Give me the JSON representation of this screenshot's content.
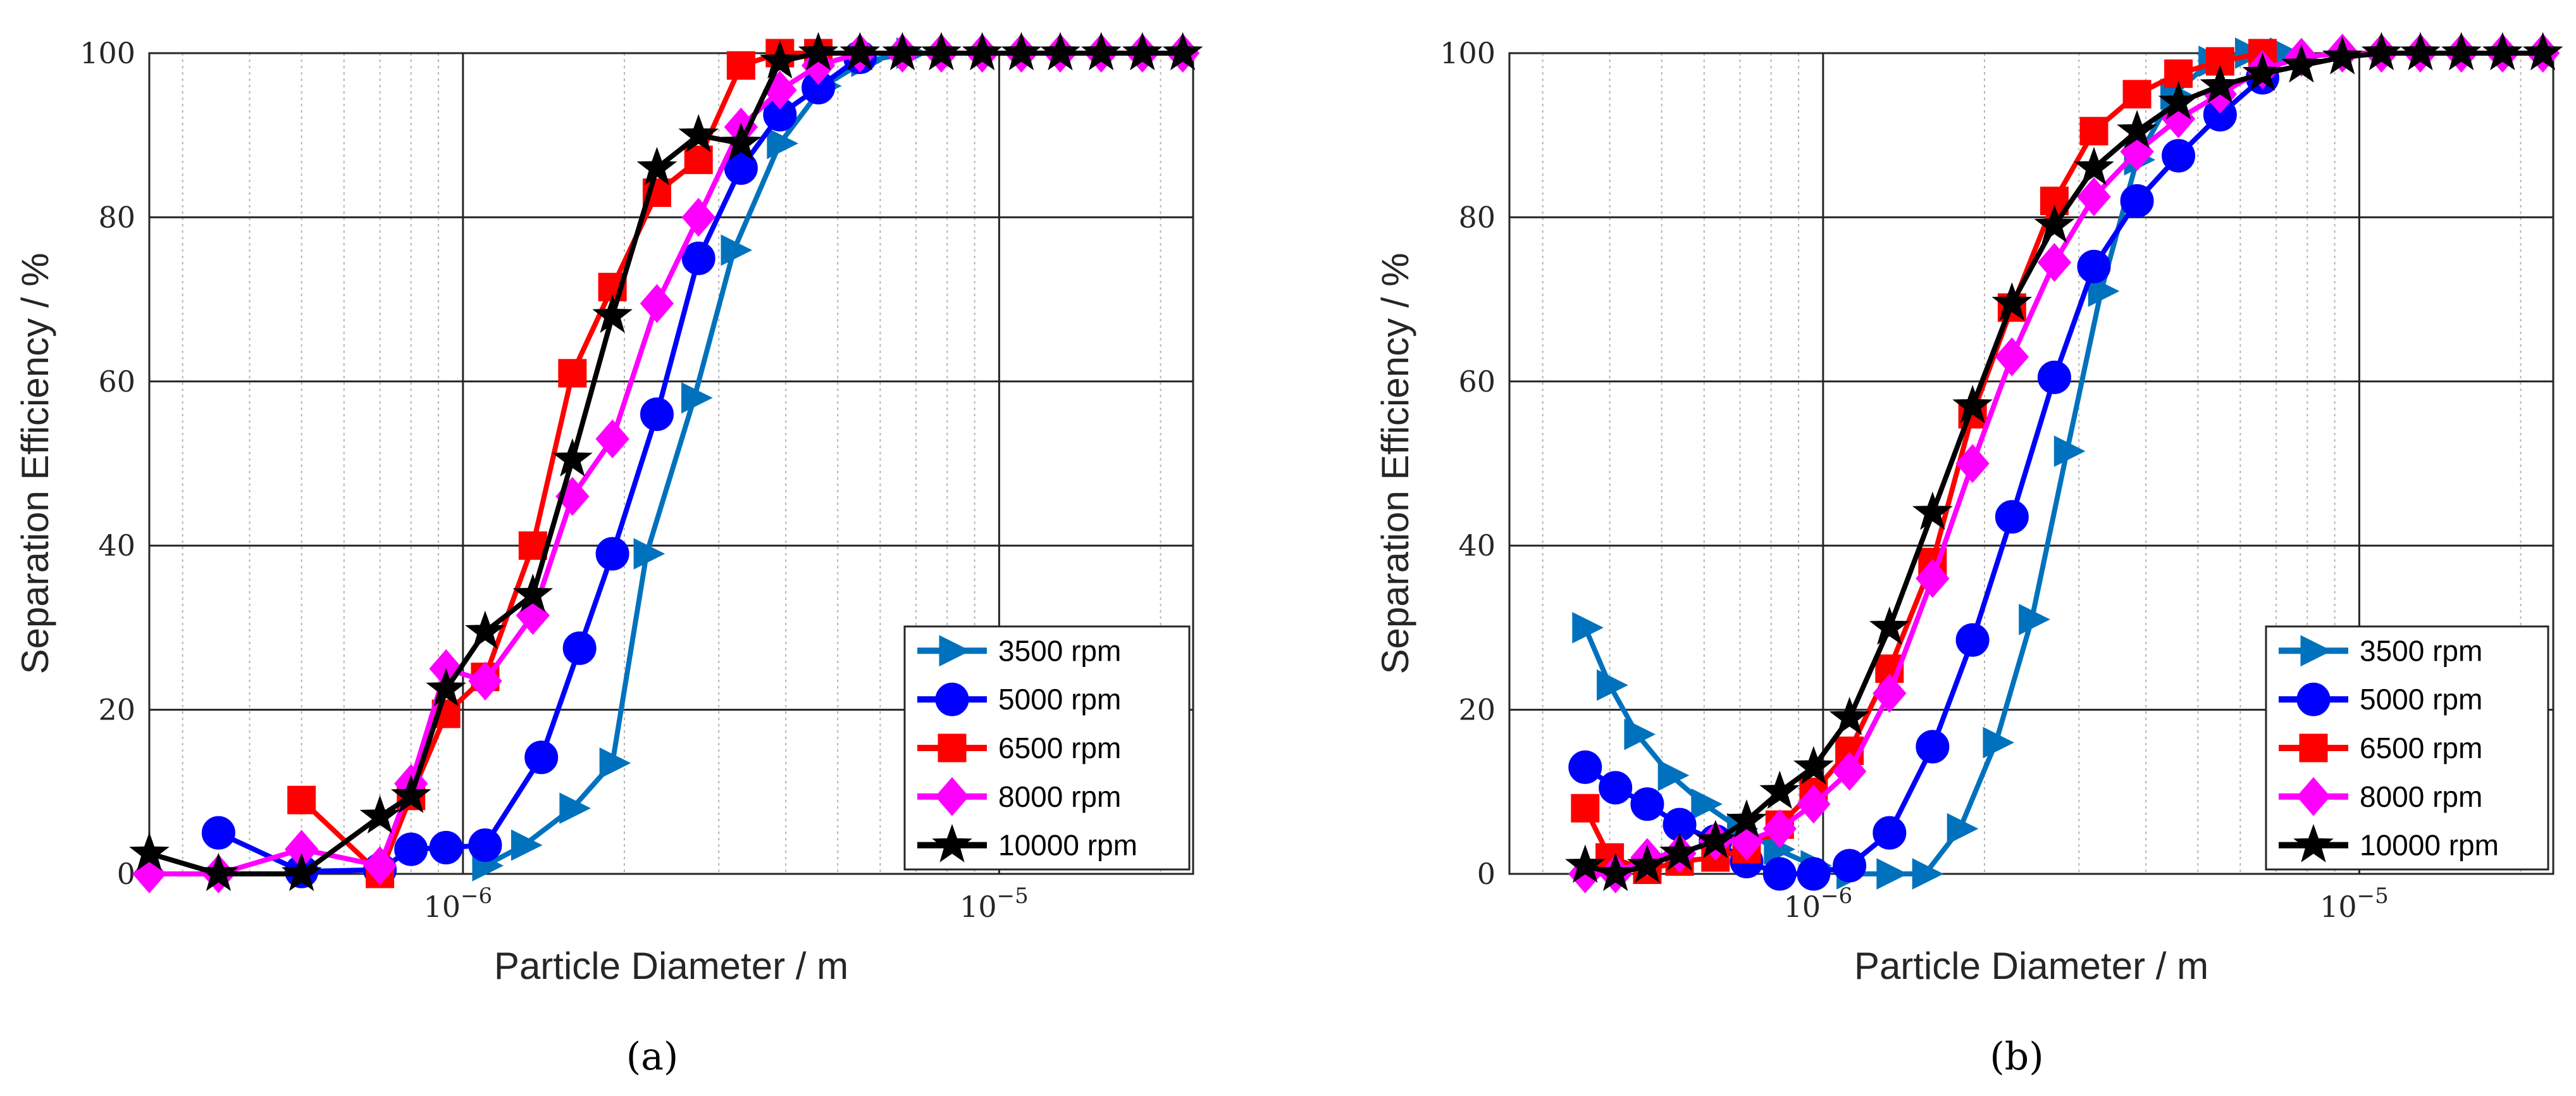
{
  "figure": {
    "captions": [
      "(a)",
      "(b)"
    ]
  },
  "chart_data": [
    {
      "type": "line",
      "panel": "a",
      "xlabel": "Particle Diameter / m",
      "ylabel": "Separation Efficiency / %",
      "xscale": "log",
      "xlim": [
        2.6e-07,
        2.3e-05
      ],
      "ylim": [
        0,
        100
      ],
      "xticks": [
        {
          "value": 1e-06,
          "base": "10",
          "exp": "−6"
        },
        {
          "value": 1e-05,
          "base": "10",
          "exp": "−5"
        }
      ],
      "yticks": [
        "0",
        "20",
        "40",
        "60",
        "80",
        "100"
      ],
      "grid": true,
      "legend_position": "bottom-right",
      "series": [
        {
          "name": "3500 rpm",
          "color": "#0072BD",
          "marker": "triangle-right",
          "x": [
            1.1e-06,
            1.3e-06,
            1.6e-06,
            1.9e-06,
            2.2e-06,
            2.7e-06,
            3.2e-06,
            3.9e-06,
            4.7e-06,
            5.6e-06,
            6.8e-06
          ],
          "y": [
            1,
            3.5,
            8,
            13.5,
            39,
            58,
            76,
            89,
            96,
            99,
            100
          ]
        },
        {
          "name": "5000 rpm",
          "color": "#0000FF",
          "marker": "circle",
          "x": [
            3.5e-07,
            5e-07,
            7e-07,
            8e-07,
            9.3e-07,
            1.1e-06,
            1.4e-06,
            1.65e-06,
            1.9e-06,
            2.3e-06,
            2.75e-06,
            3.3e-06,
            3.9e-06,
            4.6e-06,
            5.5e-06
          ],
          "y": [
            5,
            0.3,
            0.5,
            3,
            3.2,
            3.5,
            14.2,
            27.5,
            39,
            56,
            75,
            86,
            92.5,
            95.8,
            99.5
          ]
        },
        {
          "name": "6500 rpm",
          "color": "#FF0000",
          "marker": "square",
          "x": [
            5e-07,
            7e-07,
            8e-07,
            9.3e-07,
            1.1e-06,
            1.35e-06,
            1.6e-06,
            1.9e-06,
            2.3e-06,
            2.75e-06,
            3.3e-06,
            3.9e-06,
            4.6e-06
          ],
          "y": [
            9,
            0,
            9.5,
            19.5,
            24,
            40,
            61,
            71.5,
            83,
            87,
            98.5,
            100,
            100
          ]
        },
        {
          "name": "8000 rpm",
          "color": "#FF00FF",
          "marker": "diamond",
          "x": [
            2.6e-07,
            3.5e-07,
            5e-07,
            7e-07,
            8e-07,
            9.3e-07,
            1.1e-06,
            1.35e-06,
            1.6e-06,
            1.9e-06,
            2.3e-06,
            2.75e-06,
            3.3e-06,
            3.9e-06,
            4.6e-06,
            5.5e-06,
            6.6e-06,
            7.8e-06,
            9.3e-06,
            1.1e-05,
            1.3e-05,
            1.55e-05,
            1.85e-05,
            2.2e-05
          ],
          "y": [
            0,
            0,
            3,
            1,
            11,
            25,
            23.5,
            31.5,
            46,
            53,
            69.5,
            80,
            91,
            95.5,
            98.5,
            100,
            100,
            100,
            100,
            100,
            100,
            100,
            100,
            100
          ]
        },
        {
          "name": "10000 rpm",
          "color": "#000000",
          "marker": "pentagram",
          "x": [
            2.6e-07,
            3.5e-07,
            5e-07,
            7e-07,
            8e-07,
            9.3e-07,
            1.1e-06,
            1.35e-06,
            1.6e-06,
            1.9e-06,
            2.3e-06,
            2.75e-06,
            3.3e-06,
            3.9e-06,
            4.6e-06,
            5.5e-06,
            6.6e-06,
            7.8e-06,
            9.3e-06,
            1.1e-05,
            1.3e-05,
            1.55e-05,
            1.85e-05,
            2.2e-05
          ],
          "y": [
            2.5,
            0,
            0,
            7,
            9.5,
            22.5,
            29.5,
            34,
            50.5,
            68,
            86,
            90,
            89,
            99,
            100,
            100,
            100,
            100,
            100,
            100,
            100,
            100,
            100,
            100
          ]
        }
      ]
    },
    {
      "type": "line",
      "panel": "b",
      "xlabel": "Particle Diameter / m",
      "ylabel": "Separation Efficiency / %",
      "xscale": "log",
      "xlim": [
        2.6e-07,
        2.3e-05
      ],
      "ylim": [
        0,
        100
      ],
      "xticks": [
        {
          "value": 1e-06,
          "base": "10",
          "exp": "−6"
        },
        {
          "value": 1e-05,
          "base": "10",
          "exp": "−5"
        }
      ],
      "yticks": [
        "0",
        "20",
        "40",
        "60",
        "80",
        "100"
      ],
      "grid": true,
      "legend_position": "bottom-right",
      "series": [
        {
          "name": "3500 rpm",
          "color": "#0072BD",
          "marker": "triangle-right",
          "x": [
            3.6e-07,
            4e-07,
            4.5e-07,
            5.2e-07,
            6e-07,
            7e-07,
            8.2e-07,
            9.6e-07,
            1.12e-06,
            1.33e-06,
            1.55e-06,
            1.8e-06,
            2.1e-06,
            2.45e-06,
            2.85e-06,
            3.3e-06,
            3.85e-06,
            4.5e-06,
            5.3e-06,
            6.2e-06,
            7.2e-06
          ],
          "y": [
            30,
            23,
            17,
            12,
            8.5,
            5.5,
            3,
            1,
            0,
            0,
            0,
            5.5,
            16,
            31,
            51.5,
            71,
            87,
            95,
            99,
            100,
            100
          ]
        },
        {
          "name": "5000 rpm",
          "color": "#0000FF",
          "marker": "circle",
          "x": [
            3.6e-07,
            4.1e-07,
            4.7e-07,
            5.4e-07,
            6.3e-07,
            7.2e-07,
            8.3e-07,
            9.6e-07,
            1.12e-06,
            1.33e-06,
            1.6e-06,
            1.9e-06,
            2.25e-06,
            2.7e-06,
            3.2e-06,
            3.85e-06,
            4.6e-06,
            5.5e-06,
            6.6e-06
          ],
          "y": [
            13,
            10.5,
            8.5,
            6,
            4,
            1.5,
            0,
            0,
            1,
            5,
            15.5,
            28.5,
            43.5,
            60.5,
            74,
            82,
            87.5,
            92.5,
            97
          ]
        },
        {
          "name": "6500 rpm",
          "color": "#FF0000",
          "marker": "square",
          "x": [
            3.6e-07,
            4e-07,
            4.7e-07,
            5.4e-07,
            6.3e-07,
            7.2e-07,
            8.3e-07,
            9.6e-07,
            1.12e-06,
            1.33e-06,
            1.6e-06,
            1.9e-06,
            2.25e-06,
            2.7e-06,
            3.2e-06,
            3.85e-06,
            4.6e-06,
            5.5e-06,
            6.6e-06
          ],
          "y": [
            8,
            2,
            0.5,
            1.5,
            2,
            3,
            6,
            10,
            15,
            25,
            38,
            56,
            69,
            82,
            90.5,
            95,
            97.5,
            99,
            100
          ]
        },
        {
          "name": "8000 rpm",
          "color": "#FF00FF",
          "marker": "diamond",
          "x": [
            3.6e-07,
            4.1e-07,
            4.7e-07,
            5.4e-07,
            6.3e-07,
            7.2e-07,
            8.3e-07,
            9.6e-07,
            1.12e-06,
            1.33e-06,
            1.6e-06,
            1.9e-06,
            2.25e-06,
            2.7e-06,
            3.2e-06,
            3.85e-06,
            4.6e-06,
            5.5e-06,
            6.6e-06,
            7.8e-06,
            9.3e-06,
            1.1e-05,
            1.3e-05,
            1.55e-05,
            1.85e-05,
            2.2e-05
          ],
          "y": [
            0,
            0,
            2,
            2.5,
            4,
            4,
            5.5,
            8.5,
            12.5,
            22,
            36,
            50,
            63,
            74.5,
            82.5,
            88,
            92,
            95,
            98,
            99.5,
            100,
            100,
            100,
            100,
            100,
            100
          ]
        },
        {
          "name": "10000 rpm",
          "color": "#000000",
          "marker": "pentagram",
          "x": [
            3.6e-07,
            4.1e-07,
            4.7e-07,
            5.4e-07,
            6.3e-07,
            7.2e-07,
            8.3e-07,
            9.6e-07,
            1.12e-06,
            1.33e-06,
            1.6e-06,
            1.9e-06,
            2.25e-06,
            2.7e-06,
            3.2e-06,
            3.85e-06,
            4.6e-06,
            5.5e-06,
            6.6e-06,
            7.8e-06,
            9.3e-06,
            1.1e-05,
            1.3e-05,
            1.55e-05,
            1.85e-05,
            2.2e-05
          ],
          "y": [
            1,
            0,
            1,
            2.5,
            4,
            6.5,
            10,
            13,
            19,
            30,
            44,
            57,
            69.5,
            79,
            86,
            90.5,
            94,
            96,
            97.5,
            98.5,
            99.5,
            100,
            100,
            100,
            100,
            100
          ]
        }
      ]
    }
  ]
}
